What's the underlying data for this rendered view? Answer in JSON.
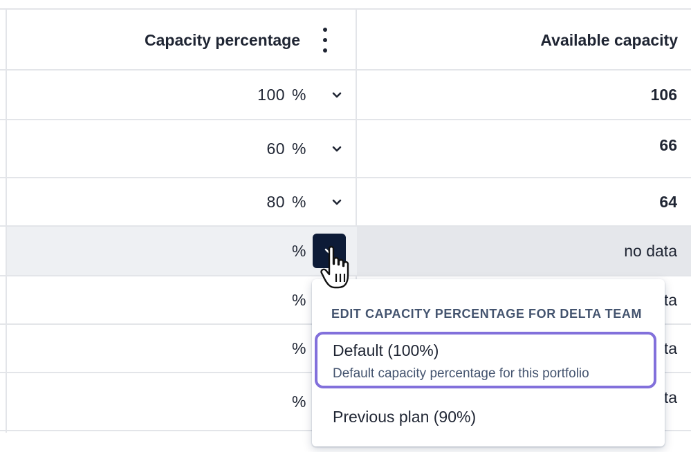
{
  "table": {
    "columns": {
      "capacity_percentage": "Capacity percentage",
      "available_capacity": "Available capacity"
    },
    "rows": [
      {
        "percent_value": "100",
        "percent_sign": "%",
        "available": "106"
      },
      {
        "percent_value": "60",
        "percent_sign": "%",
        "available": "66"
      },
      {
        "percent_value": "80",
        "percent_sign": "%",
        "available": "64"
      },
      {
        "percent_value": "",
        "percent_sign": "%",
        "available": "no data"
      },
      {
        "percent_value": "",
        "percent_sign": "%",
        "available": "ta"
      },
      {
        "percent_value": "",
        "percent_sign": "%",
        "available": "ta"
      },
      {
        "percent_value": "",
        "percent_sign": "%",
        "available": "ta"
      }
    ]
  },
  "dropdown": {
    "heading": "EDIT CAPACITY PERCENTAGE FOR DELTA TEAM",
    "options": [
      {
        "label": "Default (100%)",
        "description": "Default capacity percentage for this portfolio",
        "selected": true
      },
      {
        "label": "Previous plan (90%)"
      }
    ]
  },
  "colors": {
    "selection_outline": "#8270db",
    "active_chevron_bg": "#0d1b37",
    "highlight_row": "#eef0f3"
  },
  "icons": {
    "column_menu": "more-vertical-icon",
    "row_dropdown": "chevron-down-icon",
    "pointer": "hand-pointer-cursor-icon"
  }
}
